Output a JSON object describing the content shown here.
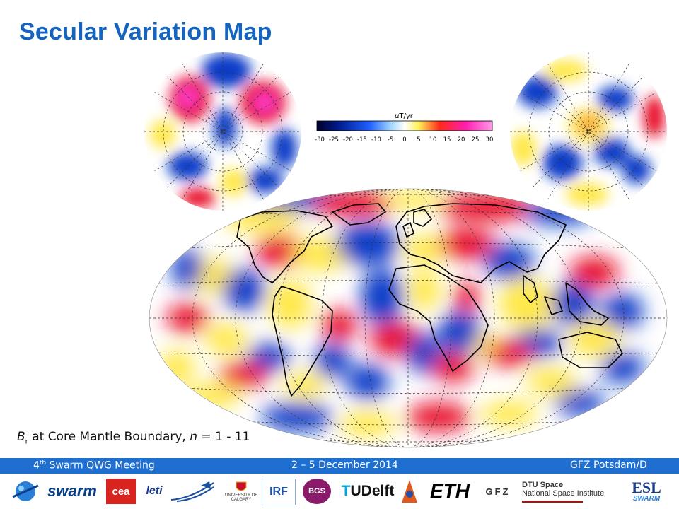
{
  "title": "Secular Variation Map",
  "colorbar": {
    "unit_mu": "μ",
    "unit_rest": "T/yr",
    "ticks": [
      "-30",
      "-25",
      "-20",
      "-15",
      "-10",
      "-5",
      "0",
      "5",
      "10",
      "15",
      "20",
      "25",
      "30"
    ]
  },
  "caption": {
    "symbol": "B",
    "subscript": "r",
    "text": " at Core Mantle Boundary, ",
    "n_label": "n",
    "n_range": " = 1 - 11"
  },
  "footer": {
    "meeting_num": "4",
    "meeting_sup": "th",
    "meeting_rest": " Swarm QWG Meeting",
    "dates": "2 – 5 December 2014",
    "location": "GFZ Potsdam/D"
  },
  "logos": {
    "swarm": "swarm",
    "cea": "cea",
    "leti": "leti",
    "calgary_1": "UNIVERSITY OF",
    "calgary_2": "CALGARY",
    "irf": "IRF",
    "bgs": "BGS",
    "tudelft_t": "T",
    "tudelft": "UDelft",
    "eth": "ETH",
    "gfz": "GFZ",
    "dtu_1": "DTU Space",
    "dtu_2": "National Space Institute",
    "esl": "ESL",
    "esl_swarm": "SWARM"
  },
  "colors": {
    "title": "#1565c0",
    "footer_bar": "#1f6fd0",
    "negative": "#0a3cc8",
    "positive": "#e8102a",
    "mid_positive": "#ffe84a",
    "peak_positive": "#ff3cc8"
  }
}
